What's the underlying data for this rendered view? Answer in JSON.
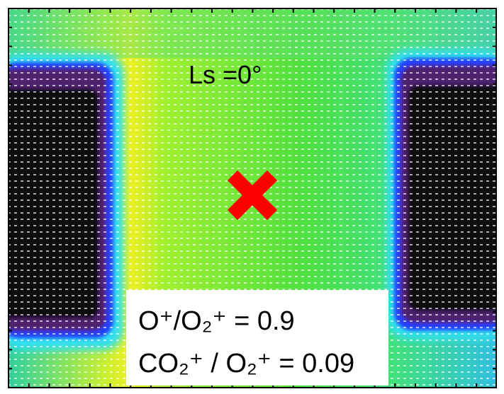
{
  "label": "Ls =0°",
  "ratios": [
    "O⁺/O₂⁺ = 0.9",
    "CO₂⁺ / O₂⁺ = 0.09"
  ]
}
